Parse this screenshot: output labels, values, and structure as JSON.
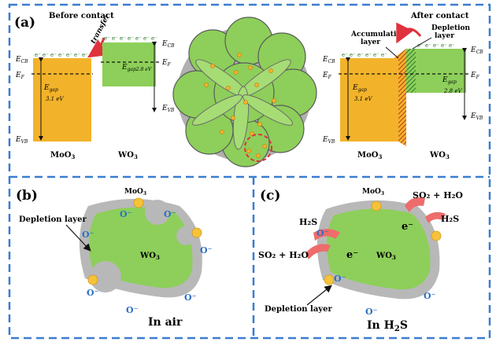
{
  "panel_a": {
    "label": "(a)",
    "before_title": "Before contact",
    "after_title": "After contact",
    "transfer": "transfer",
    "accumulation": [
      "Accumulation",
      "layer"
    ],
    "depletion": [
      "Depletion",
      "layer"
    ],
    "ecb": "E",
    "ecb_sub": "CB",
    "ef": "E",
    "ef_sub": "F",
    "evb": "E",
    "evb_sub": "VB",
    "egap_moo3": "E",
    "egap_sub": "gap",
    "moo3_val": "3.1 eV",
    "wo3_val": "2.8 eV",
    "wo3_egap_inline": "gap2.8 eV",
    "moo3_label": "MoO",
    "wo3_label": "WO",
    "sub3": "3",
    "electron": "e⁻"
  },
  "panel_b": {
    "label": "(b)",
    "moo3": "MoO",
    "sub3": "3",
    "depletion": "Depletion layer",
    "wo3": "WO",
    "oxygen": "O⁻",
    "caption": "In air"
  },
  "panel_c": {
    "label": "(c)",
    "moo3": "MoO",
    "sub3": "3",
    "so2_h2o": "SO₂ + H₂O",
    "h2s": "H₂S",
    "electron": "e⁻",
    "wo3": "WO",
    "oxygen": "O⁻",
    "depletion": "Depletion layer",
    "caption_pre": "In H",
    "caption_sub": "2",
    "caption_post": "S"
  },
  "colors": {
    "moo3_orange": "#f2b32a",
    "wo3_green": "#8dcf5a",
    "shell_gray": "#b8b8b8",
    "frame_blue": "#3a7dd0",
    "arrow_red": "#e0323c",
    "gas_pink": "#ee6c6c",
    "oxygen_blue": "#2a6fc4"
  }
}
